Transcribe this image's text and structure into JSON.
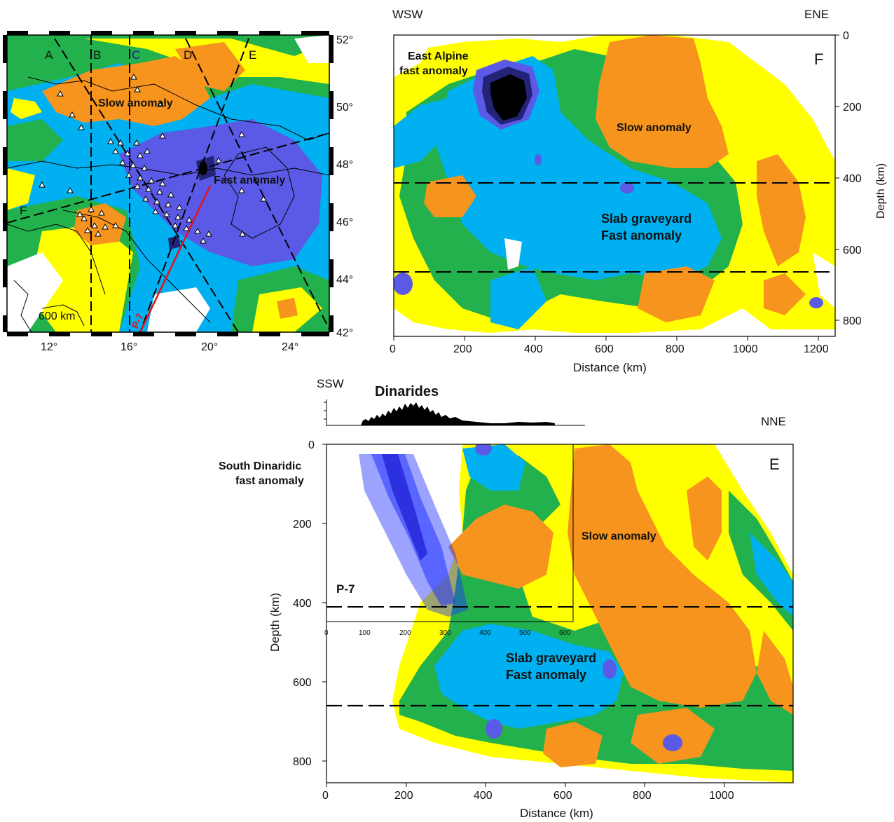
{
  "map": {
    "profile_labels": [
      "A",
      "B",
      "C",
      "D",
      "E",
      "F"
    ],
    "lat_ticks": [
      "52°",
      "50°",
      "48°",
      "46°",
      "44°",
      "42°"
    ],
    "lon_ticks": [
      "12°",
      "16°",
      "20°",
      "24°"
    ],
    "scale_label": "600 km",
    "slow_label": "Slow anomaly",
    "fast_label": "Fast anomaly",
    "line_label": "P-7"
  },
  "panel_f": {
    "left_dir": "WSW",
    "right_dir": "ENE",
    "panel_letter": "F",
    "east_alpine_1": "East Alpine",
    "east_alpine_2": "fast anomaly",
    "slow": "Slow anomaly",
    "graveyard_1": "Slab graveyard",
    "graveyard_2": "Fast anomaly",
    "x_ticks": [
      "0",
      "200",
      "400",
      "600",
      "800",
      "1000",
      "1200"
    ],
    "y_ticks": [
      "0",
      "200",
      "400",
      "600",
      "800"
    ],
    "xlabel": "Distance (km)",
    "ylabel": "Depth (km)"
  },
  "panel_e": {
    "left_dir": "SSW",
    "right_dir": "NNE",
    "topo_title": "Dinarides",
    "panel_letter": "E",
    "south_dinaridic_1": "South Dinaridic",
    "south_dinaridic_2": "fast anomaly",
    "slow": "Slow anomaly",
    "graveyard_1": "Slab graveyard",
    "graveyard_2": "Fast anomaly",
    "inset_label": "P-7",
    "inset_ticks": [
      "0",
      "100",
      "200",
      "300",
      "400",
      "500",
      "600"
    ],
    "x_ticks": [
      "0",
      "200",
      "400",
      "600",
      "800",
      "1000"
    ],
    "y_ticks": [
      "0",
      "200",
      "400",
      "600",
      "800"
    ],
    "xlabel": "Distance (km)",
    "ylabel": "Depth (km)"
  },
  "colors": {
    "slow": "#f7941d",
    "weak_slow": "#ffff00",
    "neutral": "#22b14c",
    "weak_fast": "#00b0f0",
    "fast": "#5a5ae6",
    "very_fast": "#23237a",
    "extreme": "#000000",
    "profile_red": "#e8101a"
  }
}
